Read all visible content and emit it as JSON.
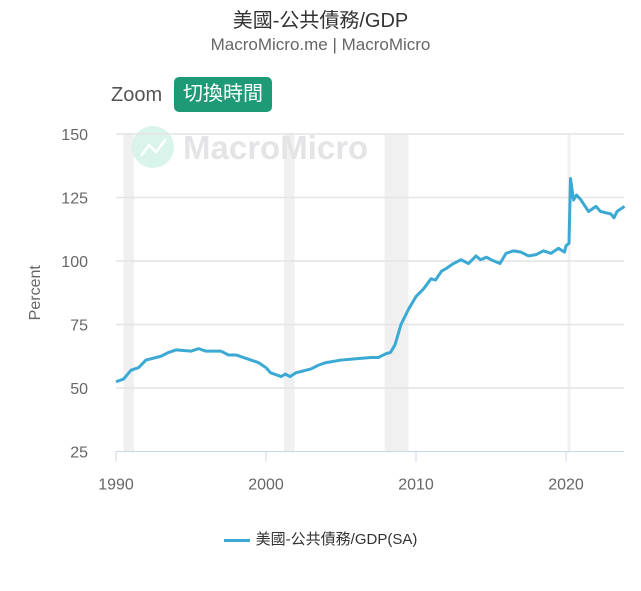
{
  "chart_data": {
    "type": "line",
    "title": "美國-公共債務/GDP",
    "subtitle": "MacroMicro.me | MacroMicro",
    "watermark": "MacroMicro",
    "ylabel": "Percent",
    "xlabel": "",
    "ylim": [
      25,
      150
    ],
    "xlim": [
      1989.9,
      2024
    ],
    "y_ticks": [
      25,
      50,
      75,
      100,
      125,
      150
    ],
    "x_ticks": [
      1990,
      2000,
      2010,
      2020
    ],
    "grid": "horizontal",
    "legend_position": "bottom",
    "recession_bands": [
      [
        1990.5,
        1991.2
      ],
      [
        2001.2,
        2001.9
      ],
      [
        2007.9,
        2009.5
      ],
      [
        2020.1,
        2020.3
      ]
    ],
    "series": [
      {
        "name": "美國-公共債務/GDP(SA)",
        "color": "#3ba9d4",
        "x": [
          1990,
          1990.5,
          1991,
          1991.5,
          1992,
          1993,
          1993.5,
          1994,
          1995,
          1995.5,
          1996,
          1997,
          1997.5,
          1998,
          1999,
          1999.5,
          2000,
          2000.3,
          2001,
          2001.3,
          2001.6,
          2002,
          2003,
          2003.5,
          2004,
          2005,
          2006,
          2007,
          2007.5,
          2008,
          2008.3,
          2008.6,
          2009,
          2009.5,
          2010,
          2010.5,
          2011,
          2011.3,
          2011.7,
          2012,
          2012.5,
          2013,
          2013.5,
          2014,
          2014.3,
          2014.7,
          2015,
          2015.6,
          2016,
          2016.5,
          2017,
          2017.5,
          2018,
          2018.5,
          2019,
          2019.5,
          2019.9,
          2020,
          2020.2,
          2020.3,
          2020.5,
          2020.7,
          2021,
          2021.5,
          2022,
          2022.3,
          2023,
          2023.2,
          2023.4,
          2023.9
        ],
        "values": [
          52.5,
          53.5,
          57,
          58,
          61,
          62.5,
          64,
          65,
          64.5,
          65.5,
          64.5,
          64.5,
          63,
          63,
          61,
          60,
          58,
          56,
          54.5,
          55.5,
          54.5,
          56,
          57.5,
          59,
          60,
          61,
          61.5,
          62,
          62,
          63.5,
          64,
          67,
          75,
          81,
          86,
          89,
          93,
          92.5,
          96,
          97,
          99,
          100.5,
          99,
          102,
          100.5,
          101.5,
          100.5,
          99,
          103,
          104,
          103.5,
          102,
          102.5,
          104,
          103,
          105,
          103.5,
          106,
          107,
          132.5,
          124,
          126,
          124,
          119.5,
          121.5,
          119.5,
          118.5,
          117,
          119.5,
          121.5
        ]
      }
    ]
  },
  "toolbar": {
    "zoom_label": "Zoom",
    "zoom_button": "切換時間"
  }
}
